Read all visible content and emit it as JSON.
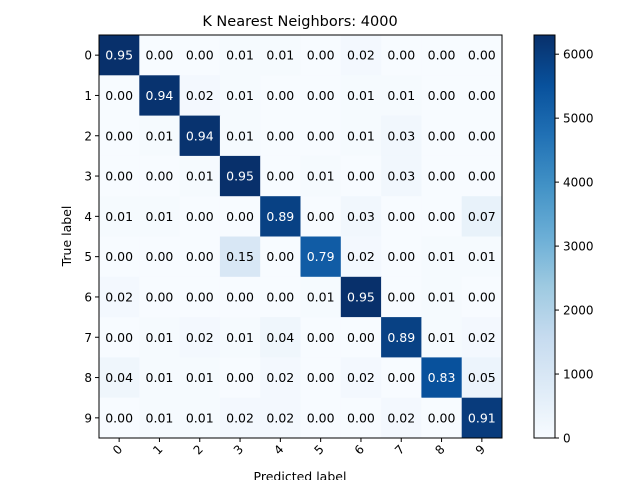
{
  "chart_data": {
    "type": "heatmap",
    "title": "K Nearest Neighbors: 4000",
    "xlabel": "Predicted label",
    "ylabel": "True label",
    "x_categories": [
      "0",
      "1",
      "2",
      "3",
      "4",
      "5",
      "6",
      "7",
      "8",
      "9"
    ],
    "y_categories": [
      "0",
      "1",
      "2",
      "3",
      "4",
      "5",
      "6",
      "7",
      "8",
      "9"
    ],
    "values": [
      [
        0.95,
        0.0,
        0.0,
        0.01,
        0.01,
        0.0,
        0.02,
        0.0,
        0.0,
        0.0
      ],
      [
        0.0,
        0.94,
        0.02,
        0.01,
        0.0,
        0.0,
        0.01,
        0.01,
        0.0,
        0.0
      ],
      [
        0.0,
        0.01,
        0.94,
        0.01,
        0.0,
        0.0,
        0.01,
        0.03,
        0.0,
        0.0
      ],
      [
        0.0,
        0.0,
        0.01,
        0.95,
        0.0,
        0.01,
        0.0,
        0.03,
        0.0,
        0.0
      ],
      [
        0.01,
        0.01,
        0.0,
        0.0,
        0.89,
        0.0,
        0.03,
        0.0,
        0.0,
        0.07
      ],
      [
        0.0,
        0.0,
        0.0,
        0.15,
        0.0,
        0.79,
        0.02,
        0.0,
        0.01,
        0.01
      ],
      [
        0.02,
        0.0,
        0.0,
        0.0,
        0.0,
        0.01,
        0.95,
        0.0,
        0.01,
        0.0
      ],
      [
        0.0,
        0.01,
        0.02,
        0.01,
        0.04,
        0.0,
        0.0,
        0.89,
        0.01,
        0.02
      ],
      [
        0.04,
        0.01,
        0.01,
        0.0,
        0.02,
        0.0,
        0.02,
        0.0,
        0.83,
        0.05
      ],
      [
        0.0,
        0.01,
        0.01,
        0.02,
        0.02,
        0.0,
        0.0,
        0.02,
        0.0,
        0.91
      ]
    ],
    "colorbar": {
      "min": 0,
      "max": 6300,
      "ticks": [
        0,
        1000,
        2000,
        3000,
        4000,
        5000,
        6000
      ]
    },
    "colormap": "Blues",
    "color_low": "#f7fbff",
    "color_high": "#08306b",
    "text_light": "#ffffff",
    "text_dark": "#000000"
  }
}
